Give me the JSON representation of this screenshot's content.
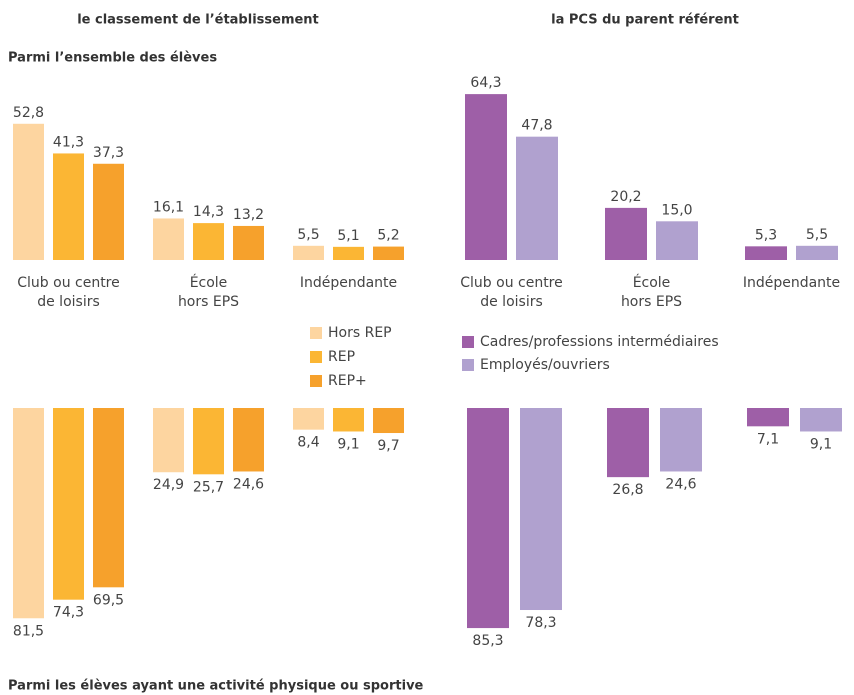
{
  "column_titles": [
    "le classement de l’établissement",
    "la PCS du parent référent"
  ],
  "row_titles": [
    "Parmi l’ensemble des élèves",
    "Parmi les élèves ayant une activité physique ou sportive"
  ],
  "chart_data": [
    {
      "type": "bar",
      "categories": [
        "Club ou centre\nde loisirs",
        "École\nhors EPS",
        "Indépendante"
      ],
      "series": [
        {
          "name": "Hors REP",
          "color": "#fdd5a0",
          "values": [
            52.8,
            16.1,
            5.5
          ],
          "value_labels": [
            "52,8",
            "16,1",
            "5,5"
          ]
        },
        {
          "name": "REP",
          "color": "#fbb634",
          "values": [
            41.3,
            14.3,
            5.1
          ],
          "value_labels": [
            "41,3",
            "14,3",
            "5,1"
          ]
        },
        {
          "name": "REP+",
          "color": "#f6a12c",
          "values": [
            37.3,
            13.2,
            5.2
          ],
          "value_labels": [
            "37,3",
            "13,2",
            "5,2"
          ]
        }
      ]
    },
    {
      "type": "bar",
      "categories": [
        "Club ou centre\nde loisirs",
        "École\nhors EPS",
        "Indépendante"
      ],
      "series": [
        {
          "name": "Cadres/professions intermédiaires",
          "color": "#9e5fa7",
          "values": [
            64.3,
            20.2,
            5.3
          ],
          "value_labels": [
            "64,3",
            "20,2",
            "5,3"
          ]
        },
        {
          "name": "Employés/ouvriers",
          "color": "#b0a1cf",
          "values": [
            47.8,
            15.0,
            5.5
          ],
          "value_labels": [
            "47,8",
            "15,0",
            "5,5"
          ]
        }
      ]
    },
    {
      "type": "bar",
      "series": [
        {
          "color": "#fdd5a0",
          "values": [
            81.5,
            24.9,
            8.4
          ],
          "value_labels": [
            "81,5",
            "24,9",
            "8,4"
          ]
        },
        {
          "color": "#fbb634",
          "values": [
            74.3,
            25.7,
            9.1
          ],
          "value_labels": [
            "74,3",
            "25,7",
            "9,1"
          ]
        },
        {
          "color": "#f6a12c",
          "values": [
            69.5,
            24.6,
            9.7
          ],
          "value_labels": [
            "69,5",
            "24,6",
            "9,7"
          ]
        }
      ]
    },
    {
      "type": "bar",
      "series": [
        {
          "color": "#9e5fa7",
          "values": [
            85.3,
            26.8,
            7.1
          ],
          "value_labels": [
            "85,3",
            "26,8",
            "7,1"
          ]
        },
        {
          "color": "#b0a1cf",
          "values": [
            78.3,
            24.6,
            9.1
          ],
          "value_labels": [
            "78,3",
            "24,6",
            "9,1"
          ]
        }
      ]
    }
  ]
}
